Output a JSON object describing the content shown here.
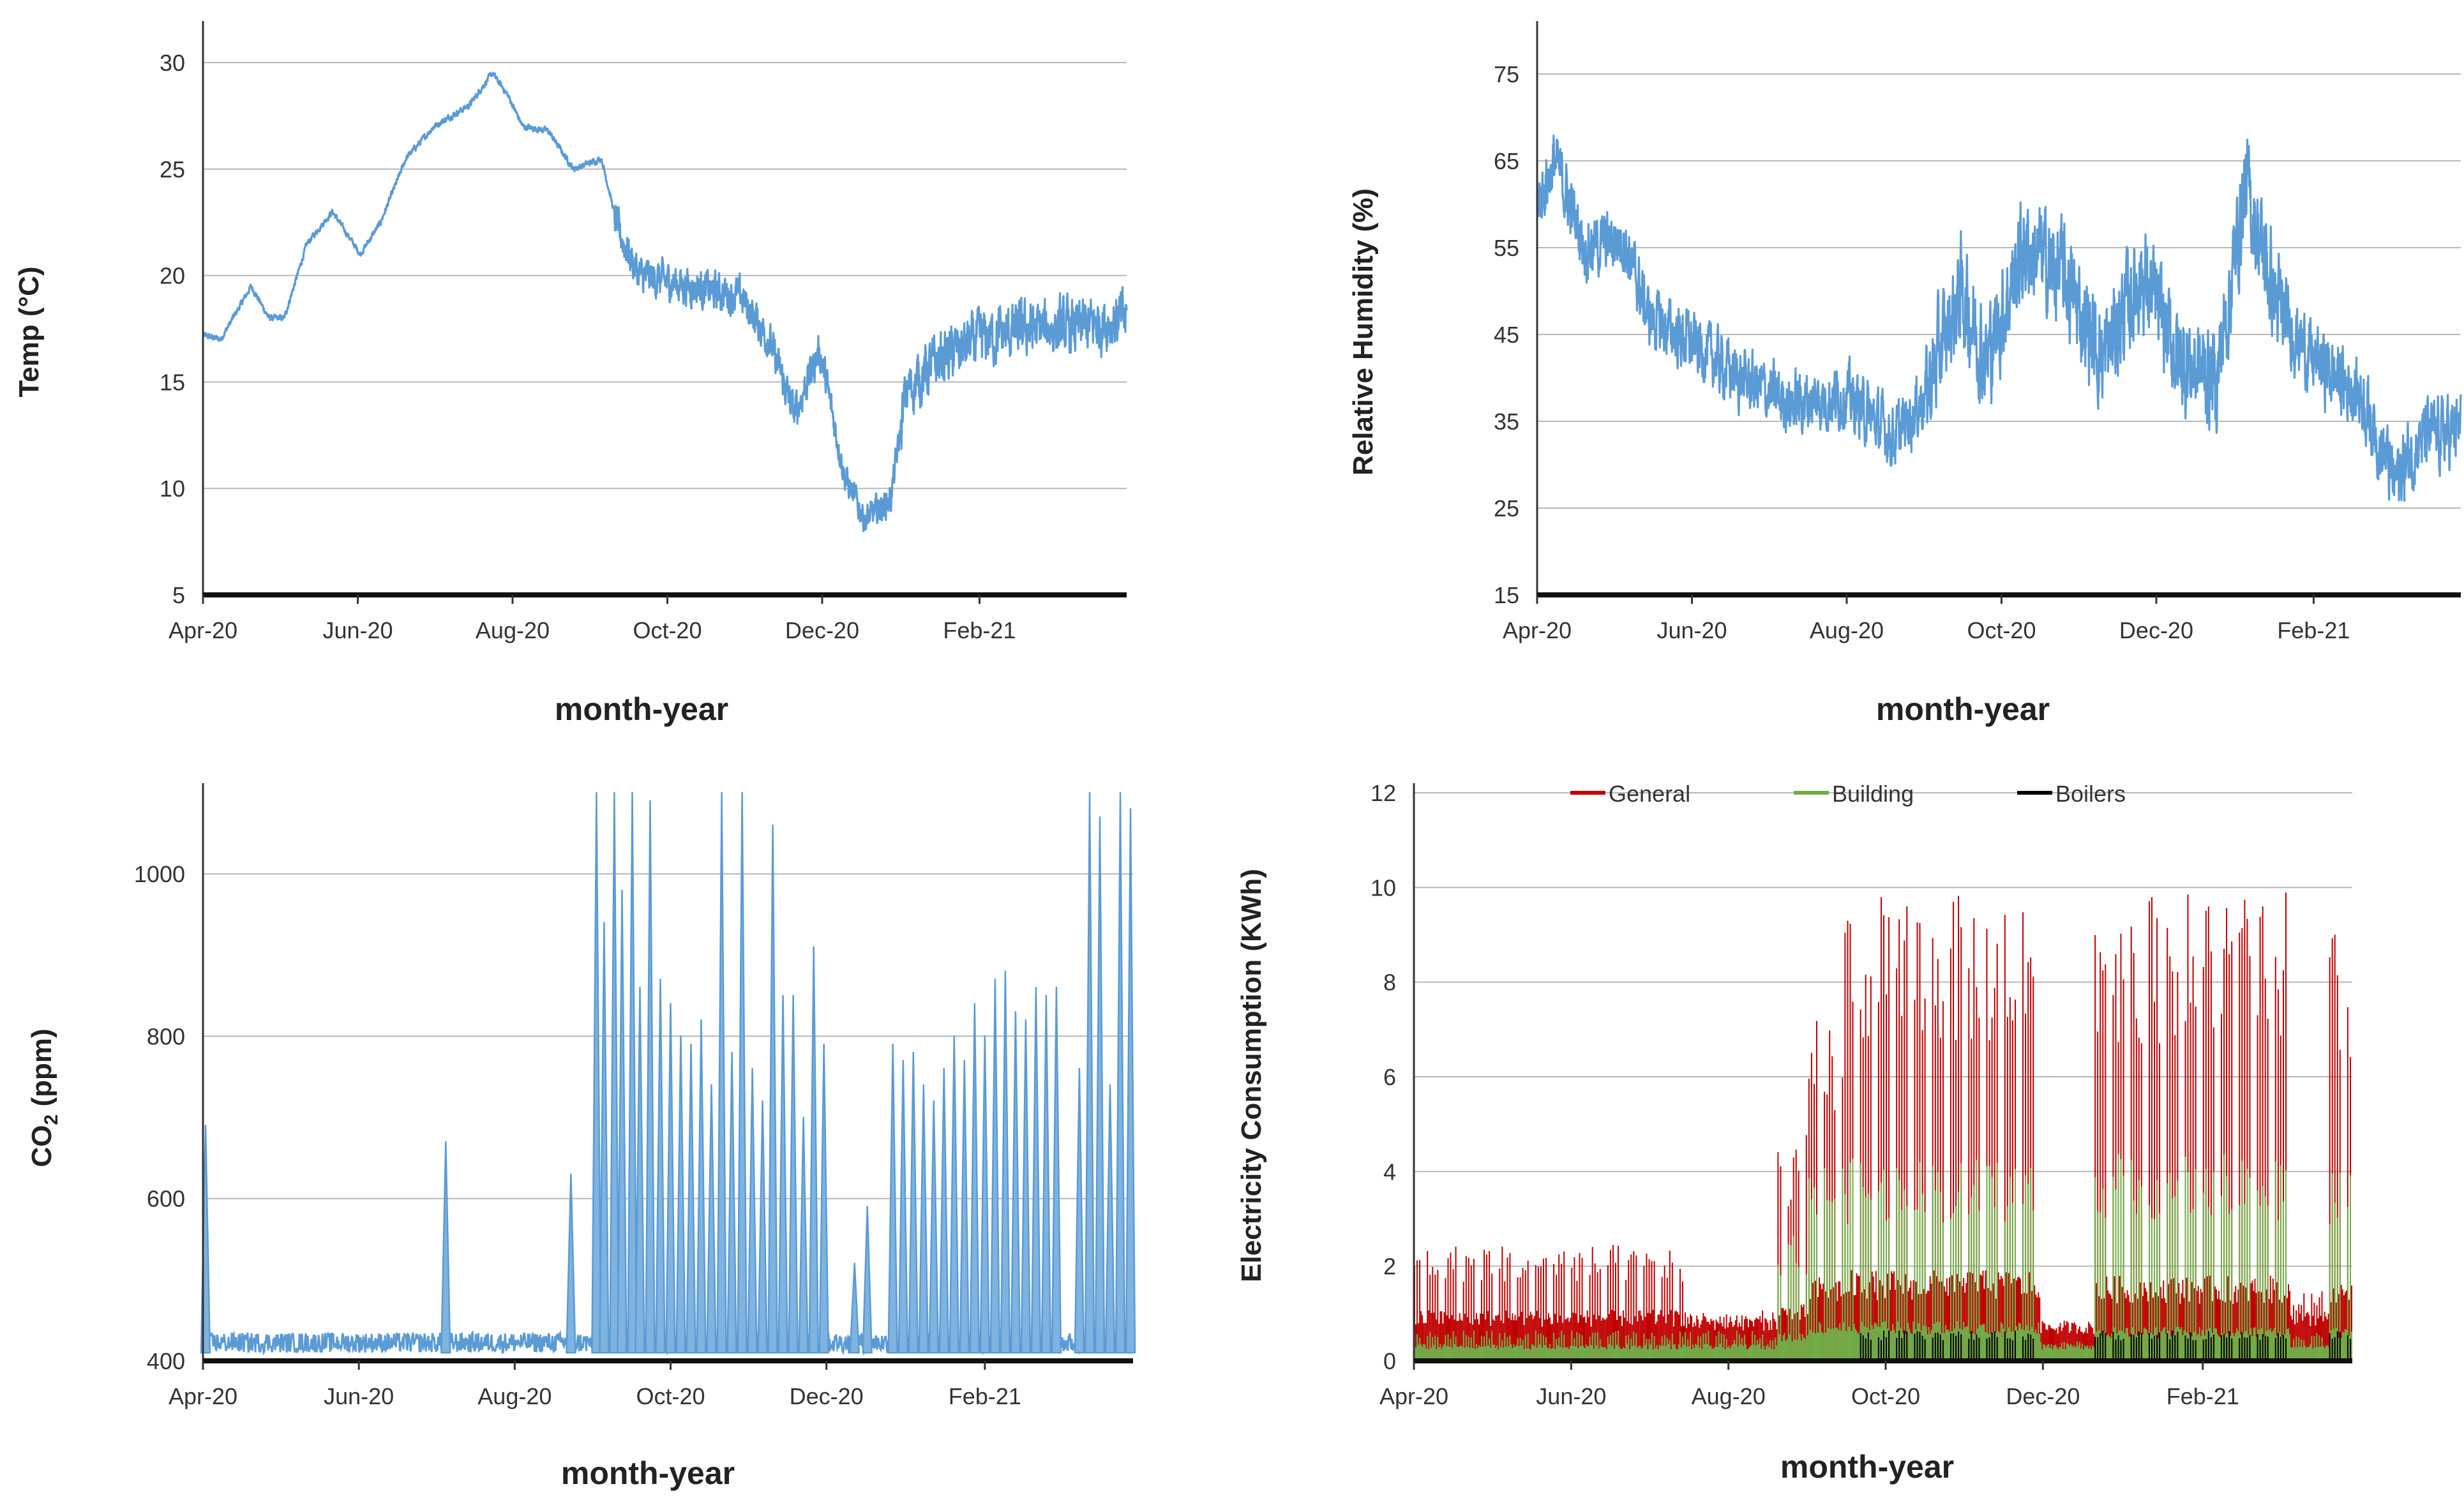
{
  "chart_data": [
    {
      "id": "temp",
      "type": "line",
      "xlabel": "month-year",
      "ylabel": "Temp (°C)",
      "x_start": "2020-04-01",
      "x_end": "2021-03-31",
      "x_ticks": [
        {
          "date": "2020-04-01",
          "label": "Apr-20"
        },
        {
          "date": "2020-06-01",
          "label": "Jun-20"
        },
        {
          "date": "2020-08-01",
          "label": "Aug-20"
        },
        {
          "date": "2020-10-01",
          "label": "Oct-20"
        },
        {
          "date": "2020-12-01",
          "label": "Dec-20"
        },
        {
          "date": "2021-02-01",
          "label": "Feb-21"
        }
      ],
      "ylim": [
        5,
        31.5
      ],
      "y_ticks": [
        5,
        10,
        15,
        20,
        25,
        30
      ],
      "grid": true,
      "series": [
        {
          "color": "#5b9bd5",
          "anchors": [
            {
              "x": "2020-04-01",
              "y": 17.2
            },
            {
              "x": "2020-04-08",
              "y": 17.0
            },
            {
              "x": "2020-04-20",
              "y": 19.5
            },
            {
              "x": "2020-04-27",
              "y": 18.0
            },
            {
              "x": "2020-05-03",
              "y": 18.0
            },
            {
              "x": "2020-05-12",
              "y": 21.5
            },
            {
              "x": "2020-05-22",
              "y": 23.0
            },
            {
              "x": "2020-06-02",
              "y": 21.0
            },
            {
              "x": "2020-06-10",
              "y": 22.5
            },
            {
              "x": "2020-06-20",
              "y": 25.5
            },
            {
              "x": "2020-07-01",
              "y": 27.0
            },
            {
              "x": "2020-07-15",
              "y": 28.0
            },
            {
              "x": "2020-07-24",
              "y": 29.5
            },
            {
              "x": "2020-07-30",
              "y": 28.5
            },
            {
              "x": "2020-08-05",
              "y": 27.0
            },
            {
              "x": "2020-08-15",
              "y": 26.8
            },
            {
              "x": "2020-08-25",
              "y": 25.0
            },
            {
              "x": "2020-09-05",
              "y": 25.5
            },
            {
              "x": "2020-09-12",
              "y": 22.0
            },
            {
              "x": "2020-09-20",
              "y": 20.0
            },
            {
              "x": "2020-10-10",
              "y": 19.5
            },
            {
              "x": "2020-10-30",
              "y": 19.0
            },
            {
              "x": "2020-11-10",
              "y": 17.0
            },
            {
              "x": "2020-11-20",
              "y": 13.5
            },
            {
              "x": "2020-11-30",
              "y": 16.5
            },
            {
              "x": "2020-12-10",
              "y": 10.5
            },
            {
              "x": "2020-12-18",
              "y": 8.5
            },
            {
              "x": "2020-12-28",
              "y": 9.5
            },
            {
              "x": "2021-01-03",
              "y": 14.5
            },
            {
              "x": "2021-01-15",
              "y": 16.0
            },
            {
              "x": "2021-02-01",
              "y": 17.0
            },
            {
              "x": "2021-02-20",
              "y": 17.5
            },
            {
              "x": "2021-03-10",
              "y": 17.5
            },
            {
              "x": "2021-03-31",
              "y": 18.0
            }
          ],
          "noise": [
            {
              "from": "2020-04-01",
              "to": "2020-09-10",
              "amp": 0.25
            },
            {
              "from": "2020-09-10",
              "to": "2020-12-05",
              "amp": 1.5
            },
            {
              "from": "2020-12-05",
              "to": "2021-01-01",
              "amp": 1.2
            },
            {
              "from": "2021-01-01",
              "to": "2021-03-31",
              "amp": 2.2
            }
          ]
        }
      ]
    },
    {
      "id": "rh",
      "type": "line",
      "xlabel": "month-year",
      "ylabel": "Relative Humidity (%)",
      "x_start": "2020-04-01",
      "x_end": "2021-03-31",
      "x_ticks": [
        {
          "date": "2020-04-01",
          "label": "Apr-20"
        },
        {
          "date": "2020-06-01",
          "label": "Jun-20"
        },
        {
          "date": "2020-08-01",
          "label": "Aug-20"
        },
        {
          "date": "2020-10-01",
          "label": "Oct-20"
        },
        {
          "date": "2020-12-01",
          "label": "Dec-20"
        },
        {
          "date": "2021-02-01",
          "label": "Feb-21"
        }
      ],
      "ylim": [
        15,
        80
      ],
      "y_ticks": [
        15,
        25,
        35,
        45,
        55,
        65,
        75
      ],
      "grid": true,
      "series": [
        {
          "color": "#5b9bd5",
          "anchors": [
            {
              "x": "2020-04-01",
              "y": 60
            },
            {
              "x": "2020-04-08",
              "y": 65
            },
            {
              "x": "2020-04-20",
              "y": 55
            },
            {
              "x": "2020-05-05",
              "y": 56
            },
            {
              "x": "2020-05-15",
              "y": 47
            },
            {
              "x": "2020-06-01",
              "y": 44
            },
            {
              "x": "2020-06-20",
              "y": 40
            },
            {
              "x": "2020-07-10",
              "y": 37
            },
            {
              "x": "2020-08-01",
              "y": 38
            },
            {
              "x": "2020-08-20",
              "y": 33
            },
            {
              "x": "2020-09-01",
              "y": 38
            },
            {
              "x": "2020-09-15",
              "y": 50
            },
            {
              "x": "2020-09-25",
              "y": 42
            },
            {
              "x": "2020-10-10",
              "y": 55
            },
            {
              "x": "2020-10-25",
              "y": 52
            },
            {
              "x": "2020-11-10",
              "y": 42
            },
            {
              "x": "2020-11-25",
              "y": 52
            },
            {
              "x": "2020-12-10",
              "y": 42
            },
            {
              "x": "2020-12-25",
              "y": 40
            },
            {
              "x": "2021-01-05",
              "y": 62
            },
            {
              "x": "2021-01-18",
              "y": 48
            },
            {
              "x": "2021-02-01",
              "y": 42
            },
            {
              "x": "2021-02-20",
              "y": 38
            },
            {
              "x": "2021-03-05",
              "y": 28
            },
            {
              "x": "2021-03-15",
              "y": 33
            },
            {
              "x": "2021-03-31",
              "y": 34
            }
          ],
          "noise": [
            {
              "from": "2020-04-01",
              "to": "2020-09-01",
              "amp": 6
            },
            {
              "from": "2020-09-01",
              "to": "2021-01-20",
              "amp": 10
            },
            {
              "from": "2021-01-20",
              "to": "2021-03-31",
              "amp": 7
            }
          ]
        }
      ]
    },
    {
      "id": "co2",
      "type": "line",
      "xlabel": "month-year",
      "ylabel_main": "CO",
      "ylabel_sub": "2",
      "ylabel_unit": " (ppm)",
      "x_start": "2020-04-01",
      "x_end": "2021-03-31",
      "x_ticks": [
        {
          "date": "2020-04-01",
          "label": "Apr-20"
        },
        {
          "date": "2020-06-01",
          "label": "Jun-20"
        },
        {
          "date": "2020-08-01",
          "label": "Aug-20"
        },
        {
          "date": "2020-10-01",
          "label": "Oct-20"
        },
        {
          "date": "2020-12-01",
          "label": "Dec-20"
        },
        {
          "date": "2021-02-01",
          "label": "Feb-21"
        }
      ],
      "ylim": [
        400,
        1100
      ],
      "y_ticks": [
        400,
        600,
        800,
        1000
      ],
      "grid": true,
      "baseline": 410,
      "spikes": [
        {
          "x": "2020-04-02",
          "y": 690
        },
        {
          "x": "2020-07-05",
          "y": 670
        },
        {
          "x": "2020-08-23",
          "y": 630
        },
        {
          "x": "2020-09-02",
          "y": 1100
        },
        {
          "x": "2020-09-05",
          "y": 940
        },
        {
          "x": "2020-09-09",
          "y": 1100
        },
        {
          "x": "2020-09-12",
          "y": 980
        },
        {
          "x": "2020-09-16",
          "y": 1100
        },
        {
          "x": "2020-09-19",
          "y": 860
        },
        {
          "x": "2020-09-23",
          "y": 1090
        },
        {
          "x": "2020-09-27",
          "y": 870
        },
        {
          "x": "2020-10-01",
          "y": 840
        },
        {
          "x": "2020-10-05",
          "y": 800
        },
        {
          "x": "2020-10-09",
          "y": 790
        },
        {
          "x": "2020-10-13",
          "y": 820
        },
        {
          "x": "2020-10-17",
          "y": 740
        },
        {
          "x": "2020-10-21",
          "y": 1100
        },
        {
          "x": "2020-10-25",
          "y": 780
        },
        {
          "x": "2020-10-29",
          "y": 1100
        },
        {
          "x": "2020-11-02",
          "y": 760
        },
        {
          "x": "2020-11-06",
          "y": 720
        },
        {
          "x": "2020-11-10",
          "y": 1060
        },
        {
          "x": "2020-11-14",
          "y": 850
        },
        {
          "x": "2020-11-18",
          "y": 850
        },
        {
          "x": "2020-11-22",
          "y": 700
        },
        {
          "x": "2020-11-26",
          "y": 910
        },
        {
          "x": "2020-11-30",
          "y": 790
        },
        {
          "x": "2020-12-12",
          "y": 520
        },
        {
          "x": "2020-12-17",
          "y": 590
        },
        {
          "x": "2020-12-27",
          "y": 790
        },
        {
          "x": "2020-12-31",
          "y": 770
        },
        {
          "x": "2021-01-04",
          "y": 780
        },
        {
          "x": "2021-01-08",
          "y": 740
        },
        {
          "x": "2021-01-12",
          "y": 720
        },
        {
          "x": "2021-01-16",
          "y": 760
        },
        {
          "x": "2021-01-20",
          "y": 800
        },
        {
          "x": "2021-01-24",
          "y": 770
        },
        {
          "x": "2021-01-28",
          "y": 840
        },
        {
          "x": "2021-02-01",
          "y": 800
        },
        {
          "x": "2021-02-05",
          "y": 870
        },
        {
          "x": "2021-02-09",
          "y": 880
        },
        {
          "x": "2021-02-13",
          "y": 830
        },
        {
          "x": "2021-02-17",
          "y": 820
        },
        {
          "x": "2021-02-21",
          "y": 860
        },
        {
          "x": "2021-02-25",
          "y": 850
        },
        {
          "x": "2021-03-01",
          "y": 860
        },
        {
          "x": "2021-03-10",
          "y": 760
        },
        {
          "x": "2021-03-14",
          "y": 1100
        },
        {
          "x": "2021-03-18",
          "y": 1070
        },
        {
          "x": "2021-03-22",
          "y": 740
        },
        {
          "x": "2021-03-26",
          "y": 1100
        },
        {
          "x": "2021-03-30",
          "y": 1080
        }
      ]
    },
    {
      "id": "elec",
      "type": "area",
      "xlabel": "month-year",
      "ylabel": "Electricity Consumption (KWh)",
      "x_start": "2020-04-01",
      "x_end": "2021-03-31",
      "x_ticks": [
        {
          "date": "2020-04-01",
          "label": "Apr-20"
        },
        {
          "date": "2020-06-01",
          "label": "Jun-20"
        },
        {
          "date": "2020-08-01",
          "label": "Aug-20"
        },
        {
          "date": "2020-10-01",
          "label": "Oct-20"
        },
        {
          "date": "2020-12-01",
          "label": "Dec-20"
        },
        {
          "date": "2021-02-01",
          "label": "Feb-21"
        }
      ],
      "ylim": [
        0,
        12
      ],
      "y_ticks": [
        0,
        2,
        4,
        6,
        8,
        10,
        12
      ],
      "grid": true,
      "legend_position": "top",
      "series": [
        {
          "name": "General",
          "color": "#c00000",
          "periods": [
            {
              "from": "2020-04-01",
              "to": "2020-07-15",
              "base": 0.9,
              "peak": 2.3
            },
            {
              "from": "2020-07-15",
              "to": "2020-08-20",
              "base": 0.8,
              "peak": 1.0
            },
            {
              "from": "2020-08-20",
              "to": "2020-09-01",
              "base": 1.0,
              "peak": 4.5
            },
            {
              "from": "2020-09-01",
              "to": "2020-09-15",
              "base": 1.5,
              "peak": 6.8
            },
            {
              "from": "2020-09-15",
              "to": "2020-11-30",
              "base": 1.6,
              "peak": 9.2
            },
            {
              "from": "2020-11-30",
              "to": "2020-12-21",
              "base": 0.7,
              "peak": 0.8
            },
            {
              "from": "2020-12-21",
              "to": "2021-03-07",
              "base": 1.5,
              "peak": 9.3
            },
            {
              "from": "2021-03-07",
              "to": "2021-03-22",
              "base": 0.9,
              "peak": 1.4
            },
            {
              "from": "2021-03-22",
              "to": "2021-03-31",
              "base": 1.4,
              "peak": 8.5
            }
          ]
        },
        {
          "name": "Building",
          "color": "#70ad47",
          "periods": [
            {
              "from": "2020-04-01",
              "to": "2020-08-20",
              "base": 0.3,
              "peak": 0.6
            },
            {
              "from": "2020-08-20",
              "to": "2020-09-01",
              "base": 0.5,
              "peak": 2.5
            },
            {
              "from": "2020-09-01",
              "to": "2020-11-30",
              "base": 0.7,
              "peak": 4.0
            },
            {
              "from": "2020-11-30",
              "to": "2020-12-21",
              "base": 0.3,
              "peak": 0.4
            },
            {
              "from": "2020-12-21",
              "to": "2021-03-07",
              "base": 0.6,
              "peak": 4.1
            },
            {
              "from": "2021-03-07",
              "to": "2021-03-22",
              "base": 0.3,
              "peak": 0.6
            },
            {
              "from": "2021-03-22",
              "to": "2021-03-31",
              "base": 0.6,
              "peak": 3.8
            }
          ]
        },
        {
          "name": "Boilers",
          "color": "#000000",
          "periods": [
            {
              "from": "2020-09-20",
              "to": "2020-11-30",
              "base": 0.0,
              "peak": 0.6
            },
            {
              "from": "2020-12-21",
              "to": "2021-03-07",
              "base": 0.0,
              "peak": 0.6
            },
            {
              "from": "2021-03-22",
              "to": "2021-03-31",
              "base": 0.0,
              "peak": 0.6
            }
          ]
        }
      ]
    }
  ]
}
